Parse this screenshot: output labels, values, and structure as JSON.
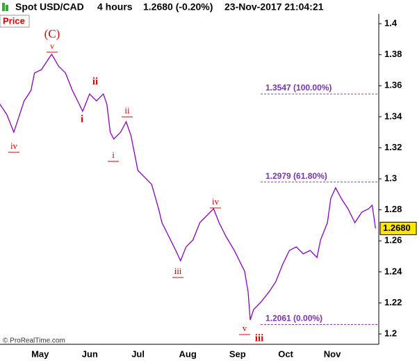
{
  "chart_data": {
    "type": "line",
    "title": "Spot USD/CAD",
    "interval": "4 hours",
    "quote": "1.2680 (-0.20%)",
    "timestamp": "23-Nov-2017 21:04:21",
    "panel_label": "Price",
    "watermark": "© ProRealTime.com",
    "xlim": [
      110,
      346
    ],
    "xticks": [
      {
        "value": 135,
        "label": "May"
      },
      {
        "value": 166,
        "label": "Jun"
      },
      {
        "value": 196,
        "label": "Jul"
      },
      {
        "value": 227,
        "label": "Aug"
      },
      {
        "value": 258,
        "label": "Sep"
      },
      {
        "value": 288,
        "label": "Oct"
      },
      {
        "value": 317,
        "label": "Nov"
      }
    ],
    "ylim": [
      1.1933,
      1.4063
    ],
    "yticks": [
      1.2,
      1.22,
      1.24,
      1.26,
      1.28,
      1.3,
      1.32,
      1.34,
      1.36,
      1.38,
      1.4
    ],
    "x": [
      110,
      114.3,
      118.6,
      122.9,
      125.0,
      129.3,
      131.5,
      135.8,
      140.1,
      142.2,
      146.5,
      150.8,
      155.1,
      159.4,
      161.5,
      165.8,
      170.1,
      174.4,
      176.6,
      178.7,
      180.9,
      185.1,
      188.6,
      191.6,
      195.9,
      200.2,
      204.5,
      208.8,
      210.9,
      215.2,
      219.5,
      222.5,
      225.9,
      230.2,
      234.5,
      238.8,
      243.1,
      246.5,
      250.8,
      256.0,
      260.3,
      262.4,
      264.6,
      265.9,
      268.0,
      272.3,
      277.5,
      281.8,
      286.1,
      290.3,
      294.6,
      298.9,
      303.2,
      307.5,
      309.7,
      314.0,
      316.1,
      319.1,
      322.6,
      326.8,
      331.1,
      335.4,
      339.7,
      341.9,
      344.0
    ],
    "series": [
      {
        "name": "Spot USD/CAD",
        "color": "#8a00c8",
        "values": [
          1.348,
          1.3413,
          1.33,
          1.3435,
          1.3502,
          1.357,
          1.3682,
          1.3704,
          1.3771,
          1.3803,
          1.3726,
          1.3682,
          1.357,
          1.348,
          1.3435,
          1.3547,
          1.3502,
          1.3547,
          1.348,
          1.33,
          1.3256,
          1.33,
          1.3368,
          1.3278,
          1.3054,
          1.3009,
          1.2964,
          1.2807,
          1.2717,
          1.2628,
          1.2538,
          1.2471,
          1.2561,
          1.2605,
          1.2717,
          1.2762,
          1.2807,
          1.2717,
          1.2628,
          1.2538,
          1.2448,
          1.2404,
          1.2269,
          1.209,
          1.2157,
          1.2202,
          1.2269,
          1.2336,
          1.2448,
          1.2538,
          1.2561,
          1.2516,
          1.2538,
          1.2493,
          1.2605,
          1.2717,
          1.2874,
          1.2942,
          1.2874,
          1.2807,
          1.2717,
          1.2785,
          1.2807,
          1.283,
          1.268
        ]
      }
    ],
    "last_price": {
      "value": 1.268,
      "label": "1.2680"
    },
    "levels": [
      {
        "value": 1.3547,
        "label": "1.3547 (100.00%)"
      },
      {
        "value": 1.2979,
        "label": "1.2979 (61.80%)"
      },
      {
        "value": 1.2061,
        "label": "1.2061 (0.00%)"
      }
    ],
    "annotations": [
      "(C)",
      "v",
      "ii",
      "i",
      "ii",
      "i",
      "iv",
      "iv",
      "iii",
      "v",
      "iii"
    ]
  }
}
